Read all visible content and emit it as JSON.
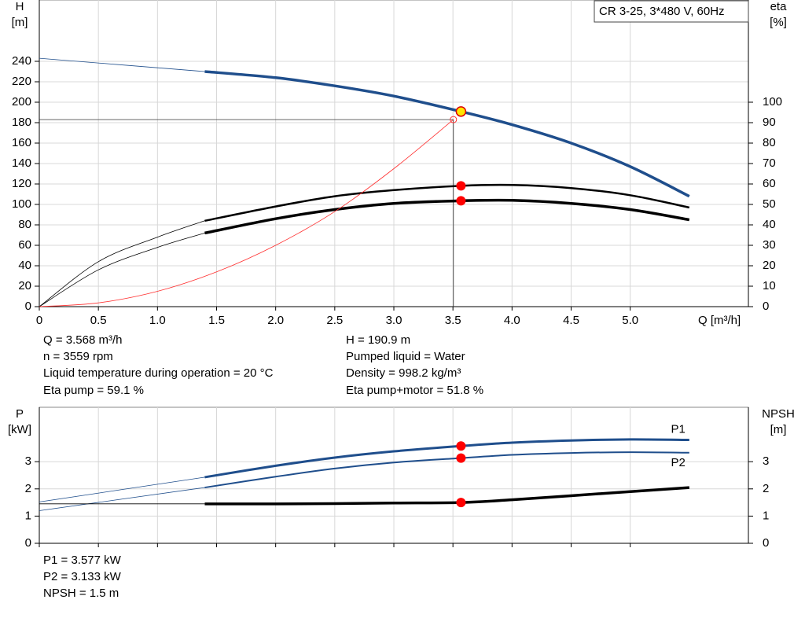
{
  "chart_data": [
    {
      "type": "line",
      "title": "CR 3-25, 3*480 V, 60Hz",
      "y_label": "H",
      "y_unit": "[m]",
      "y2_label": "eta",
      "y2_unit": "[%]",
      "x_label": "Q [m³/h]",
      "xlim": [
        0,
        6
      ],
      "xticks": [
        0,
        0.5,
        {
          "value": 1,
          "label": "1.0"
        },
        1.5,
        {
          "value": 2,
          "label": "2.0"
        },
        2.5,
        {
          "value": 3,
          "label": "3.0"
        },
        3.5,
        {
          "value": 4,
          "label": "4.0"
        },
        4.5,
        {
          "value": 5,
          "label": "5.0"
        }
      ],
      "ylim": [
        0,
        300
      ],
      "yticks": [
        0,
        20,
        40,
        60,
        80,
        100,
        120,
        140,
        160,
        180,
        200,
        220,
        240
      ],
      "y2lim": [
        0,
        150
      ],
      "y2ticks": [
        0,
        10,
        20,
        30,
        40,
        50,
        60,
        70,
        80,
        90,
        100
      ],
      "grid": true,
      "thin_until": 1.4,
      "duty_x": 3.568,
      "series": [
        {
          "x": [
            0,
            1.4,
            2.0,
            2.5,
            3.0,
            3.568,
            4.0,
            4.5,
            5.0,
            5.5
          ],
          "values": [
            243,
            230,
            224,
            216,
            206,
            190.9,
            178,
            160,
            137,
            108
          ],
          "color": "#1f4e8c",
          "width": 3.5,
          "marker": "#ffe600"
        },
        {
          "x": [
            0,
            0.5,
            1.0,
            1.4,
            2.0,
            2.5,
            3.0,
            3.568,
            4.0,
            4.5,
            5.0,
            5.5
          ],
          "values": [
            0,
            22,
            34,
            42,
            49,
            54,
            57,
            59.1,
            59.5,
            58,
            54.5,
            48.5
          ],
          "color": "#000000",
          "width": 2.5,
          "axis": "y2",
          "marker": "#ff0000"
        },
        {
          "x": [
            0,
            0.5,
            1.0,
            1.4,
            2.0,
            2.5,
            3.0,
            3.568,
            4.0,
            4.5,
            5.0,
            5.5
          ],
          "values": [
            0,
            18,
            29,
            36,
            43,
            47.5,
            50.5,
            51.8,
            52,
            50.5,
            47.5,
            42.5
          ],
          "color": "#000000",
          "width": 3.5,
          "axis": "y2",
          "marker": "#ff0000"
        },
        {
          "x": [
            0,
            0.5,
            1.0,
            1.5,
            2.0,
            2.5,
            3.0,
            3.504
          ],
          "values": [
            0,
            3.7,
            15,
            34,
            60,
            93,
            135,
            183
          ],
          "color": "#ff3030",
          "width": 0.8,
          "all_thin": true
        }
      ],
      "guide": {
        "x": 3.504,
        "y": 183
      },
      "info_left": [
        "Q = 3.568 m³/h",
        "n = 3559 rpm",
        "Liquid temperature during operation = 20 °C",
        "Eta pump = 59.1 %"
      ],
      "info_right": [
        "H = 190.9 m",
        "Pumped liquid = Water",
        "Density = 998.2 kg/m³",
        "Eta pump+motor = 51.8 %"
      ]
    },
    {
      "type": "line",
      "y_label": "P",
      "y_unit": "[kW]",
      "y2_label": "NPSH",
      "y2_unit": "[m]",
      "xlim": [
        0,
        6
      ],
      "xticks": [
        0,
        0.5,
        1,
        1.5,
        2,
        2.5,
        3,
        3.5,
        4,
        4.5,
        5
      ],
      "ylim": [
        0,
        5
      ],
      "yticks": [
        0,
        1,
        2,
        3
      ],
      "y2lim": [
        0,
        5
      ],
      "y2ticks": [
        0,
        1,
        2,
        3
      ],
      "grid": true,
      "thin_until": 1.4,
      "duty_x": 3.568,
      "series": [
        {
          "name": "P1",
          "x": [
            0,
            1.4,
            2.0,
            2.5,
            3.0,
            3.568,
            4.0,
            4.5,
            5.0,
            5.5
          ],
          "values": [
            1.52,
            2.43,
            2.85,
            3.15,
            3.38,
            3.577,
            3.7,
            3.78,
            3.82,
            3.8
          ],
          "color": "#1f4e8c",
          "width": 3,
          "marker": "#ff0000"
        },
        {
          "name": "P2",
          "x": [
            0,
            1.4,
            2.0,
            2.5,
            3.0,
            3.568,
            4.0,
            4.5,
            5.0,
            5.5
          ],
          "values": [
            1.2,
            2.05,
            2.45,
            2.75,
            2.97,
            3.133,
            3.25,
            3.32,
            3.35,
            3.33
          ],
          "color": "#1f4e8c",
          "width": 2,
          "marker": "#ff0000"
        },
        {
          "x": [
            0,
            1.4,
            2.0,
            2.5,
            3.0,
            3.568,
            4.0,
            4.5,
            5.0,
            5.5
          ],
          "values": [
            1.45,
            1.45,
            1.45,
            1.46,
            1.48,
            1.5,
            1.6,
            1.75,
            1.9,
            2.05
          ],
          "color": "#000000",
          "width": 3.5,
          "axis": "y2",
          "marker": "#ff0000"
        }
      ],
      "info_left": [
        "P1 = 3.577 kW",
        "P2 = 3.133 kW",
        "NPSH = 1.5 m"
      ]
    }
  ]
}
